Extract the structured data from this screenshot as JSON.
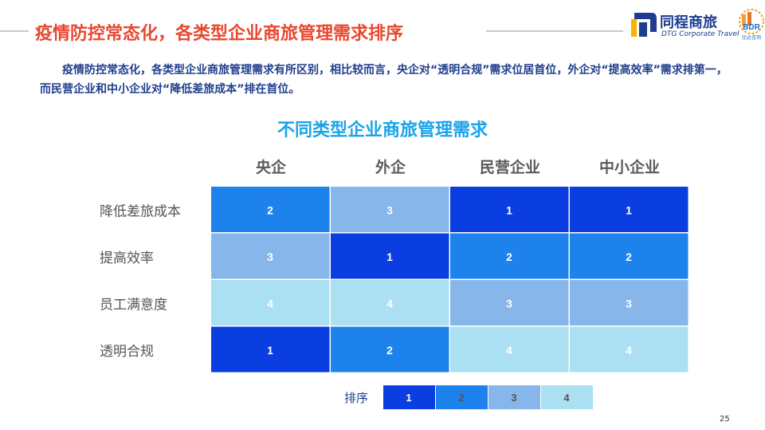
{
  "slide_title": "疫情防控常态化，各类型企业商旅管理需求排序",
  "intro": "疫情防控常态化，各类型企业商旅管理需求有所区别，相比较而言，央企对“透明合规”需求位居首位，外企对“提高效率”需求排第一，而民营企业和中小企业对“降低差旅成本”排在首位。",
  "logo": {
    "name": "同程商旅",
    "sub": "DTG Corporate Travel",
    "badge": "BDR",
    "badge_sub": "比达咨询"
  },
  "page_number": "25",
  "colors": {
    "title": "#e8482f",
    "intro": "#1f3e8c",
    "chart_title": "#1aa3e8",
    "rank_1": "#0a3ee0",
    "rank_2": "#1e82ec",
    "rank_3": "#86b6ea",
    "rank_4": "#abe0f2"
  },
  "chart_data": {
    "type": "heatmap",
    "title": "不同类型企业商旅管理需求",
    "columns": [
      "央企",
      "外企",
      "民营企业",
      "中小企业"
    ],
    "rows": [
      "降低差旅成本",
      "提高效率",
      "员工满意度",
      "透明合规"
    ],
    "values": [
      [
        2,
        3,
        1,
        1
      ],
      [
        3,
        1,
        2,
        2
      ],
      [
        4,
        4,
        3,
        3
      ],
      [
        1,
        2,
        4,
        4
      ]
    ],
    "legend": {
      "label": "排序",
      "items": [
        "1",
        "2",
        "3",
        "4"
      ]
    }
  }
}
